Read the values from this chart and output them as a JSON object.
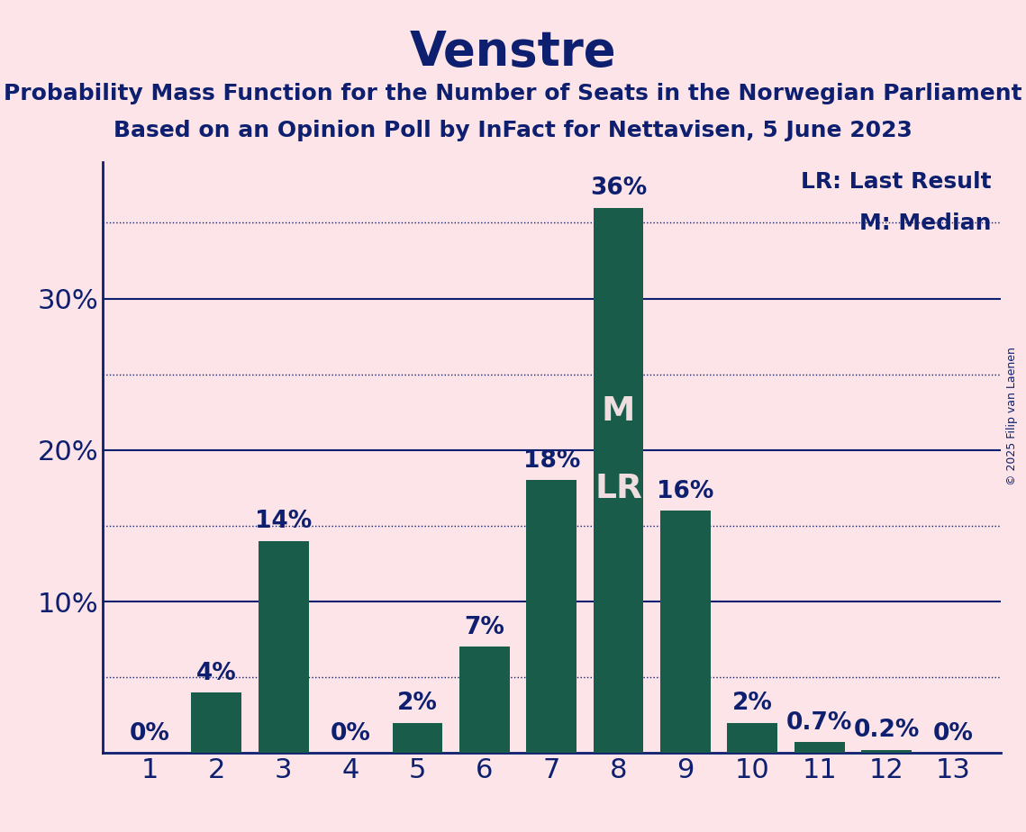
{
  "title": "Venstre",
  "subtitle1": "Probability Mass Function for the Number of Seats in the Norwegian Parliament",
  "subtitle2": "Based on an Opinion Poll by InFact for Nettavisen, 5 June 2023",
  "copyright": "© 2025 Filip van Laenen",
  "seats": [
    1,
    2,
    3,
    4,
    5,
    6,
    7,
    8,
    9,
    10,
    11,
    12,
    13
  ],
  "values": [
    0.0,
    4.0,
    14.0,
    0.0,
    2.0,
    7.0,
    18.0,
    36.0,
    16.0,
    2.0,
    0.7,
    0.2,
    0.0
  ],
  "bar_color": "#1a5c4a",
  "background_color": "#fce4e8",
  "text_color": "#0d1f6e",
  "ylabel_ticks": [
    10,
    20,
    30
  ],
  "dotted_lines": [
    5,
    15,
    25,
    35
  ],
  "solid_lines": [
    10,
    20,
    30
  ],
  "median_seat": 8,
  "lr_seat": 8,
  "legend_lr": "LR: Last Result",
  "legend_m": "M: Median",
  "title_fontsize": 38,
  "subtitle_fontsize": 18,
  "axis_label_fontsize": 22,
  "bar_label_fontsize": 19,
  "legend_fontsize": 18,
  "copyright_fontsize": 9,
  "ml_color": "#f0dde0"
}
